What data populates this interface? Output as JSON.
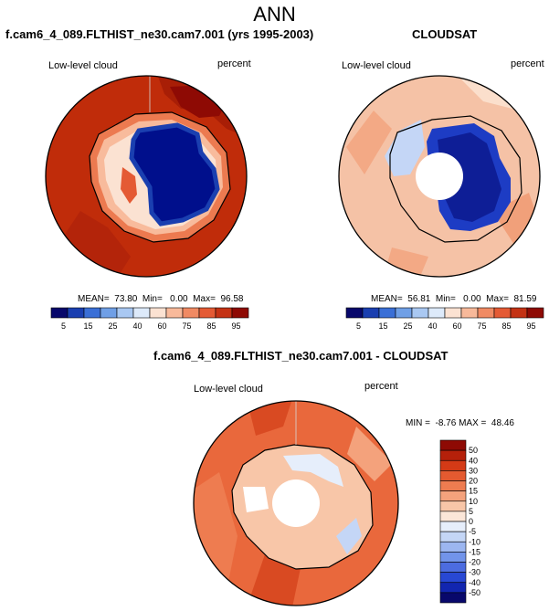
{
  "main_title": "ANN",
  "panels": {
    "left": {
      "title": "f.cam6_4_089.FLTHIST_ne30.cam7.001 (yrs 1995-2003)",
      "variable": "Low-level cloud",
      "units": "percent",
      "stats": "MEAN=  73.80  Min=   0.00  Max=  96.58"
    },
    "right": {
      "title": "CLOUDSAT",
      "variable": "Low-level cloud",
      "units": "percent",
      "stats": "MEAN=  56.81  Min=   0.00  Max=  81.59"
    },
    "diff": {
      "title": "f.cam6_4_089.FLTHIST_ne30.cam7.001 - CLOUDSAT",
      "variable": "Low-level cloud",
      "units": "percent",
      "stats": "MIN =  -8.76 MAX =  48.46"
    }
  },
  "colors": {
    "abs_colorbar": [
      "#08086b",
      "#1a3fb0",
      "#3a6fd6",
      "#6f9fe6",
      "#a9c8f2",
      "#ddeafa",
      "#fbe2d2",
      "#f8b99a",
      "#f08a63",
      "#e45a34",
      "#c43214",
      "#8e0a04"
    ],
    "diff_colorbar": [
      "#08086b",
      "#1226b0",
      "#2848d4",
      "#4c6ce0",
      "#7294ea",
      "#9cb6f0",
      "#c4d6f6",
      "#e6eefb",
      "#fbe6d8",
      "#f8c6a8",
      "#f4a27c",
      "#ee7c50",
      "#e45a30",
      "#d43a16",
      "#b5200a",
      "#8e0a04"
    ],
    "antarctica_left": "#000f8c",
    "antarctica_right": "#1d3cc4",
    "ocean_left": "#c02c0a",
    "ocean_right": "#f5c2a6",
    "ocean_diff": "#e9683c"
  },
  "chart_data": [
    {
      "type": "heatmap",
      "title": "f.cam6_4_089.FLTHIST_ne30.cam7.001 (yrs 1995-2003)",
      "variable": "Low-level cloud",
      "units": "percent",
      "projection": "south polar stereographic",
      "mean": 73.8,
      "min": 0.0,
      "max": 96.58,
      "colorbar_levels": [
        5,
        10,
        15,
        20,
        25,
        30,
        40,
        50,
        60,
        70,
        75,
        80,
        85,
        90,
        95
      ],
      "colorbar_labels": [
        "5",
        "15",
        "25",
        "40",
        "60",
        "75",
        "85",
        "95"
      ]
    },
    {
      "type": "heatmap",
      "title": "CLOUDSAT",
      "variable": "Low-level cloud",
      "units": "percent",
      "projection": "south polar stereographic",
      "mean": 56.81,
      "min": 0.0,
      "max": 81.59,
      "colorbar_levels": [
        5,
        10,
        15,
        20,
        25,
        30,
        40,
        50,
        60,
        70,
        75,
        80,
        85,
        90,
        95
      ],
      "colorbar_labels": [
        "5",
        "15",
        "25",
        "40",
        "60",
        "75",
        "85",
        "95"
      ]
    },
    {
      "type": "heatmap",
      "title": "f.cam6_4_089.FLTHIST_ne30.cam7.001 - CLOUDSAT",
      "variable": "Low-level cloud",
      "units": "percent",
      "projection": "south polar stereographic",
      "min": -8.76,
      "max": 48.46,
      "colorbar_levels": [
        -50,
        -40,
        -30,
        -20,
        -15,
        -10,
        -5,
        0,
        5,
        10,
        15,
        20,
        30,
        40,
        50
      ],
      "colorbar_labels": [
        "50",
        "40",
        "30",
        "20",
        "15",
        "10",
        "5",
        "0",
        "-5",
        "-10",
        "-15",
        "-20",
        "-30",
        "-40",
        "-50"
      ]
    }
  ]
}
